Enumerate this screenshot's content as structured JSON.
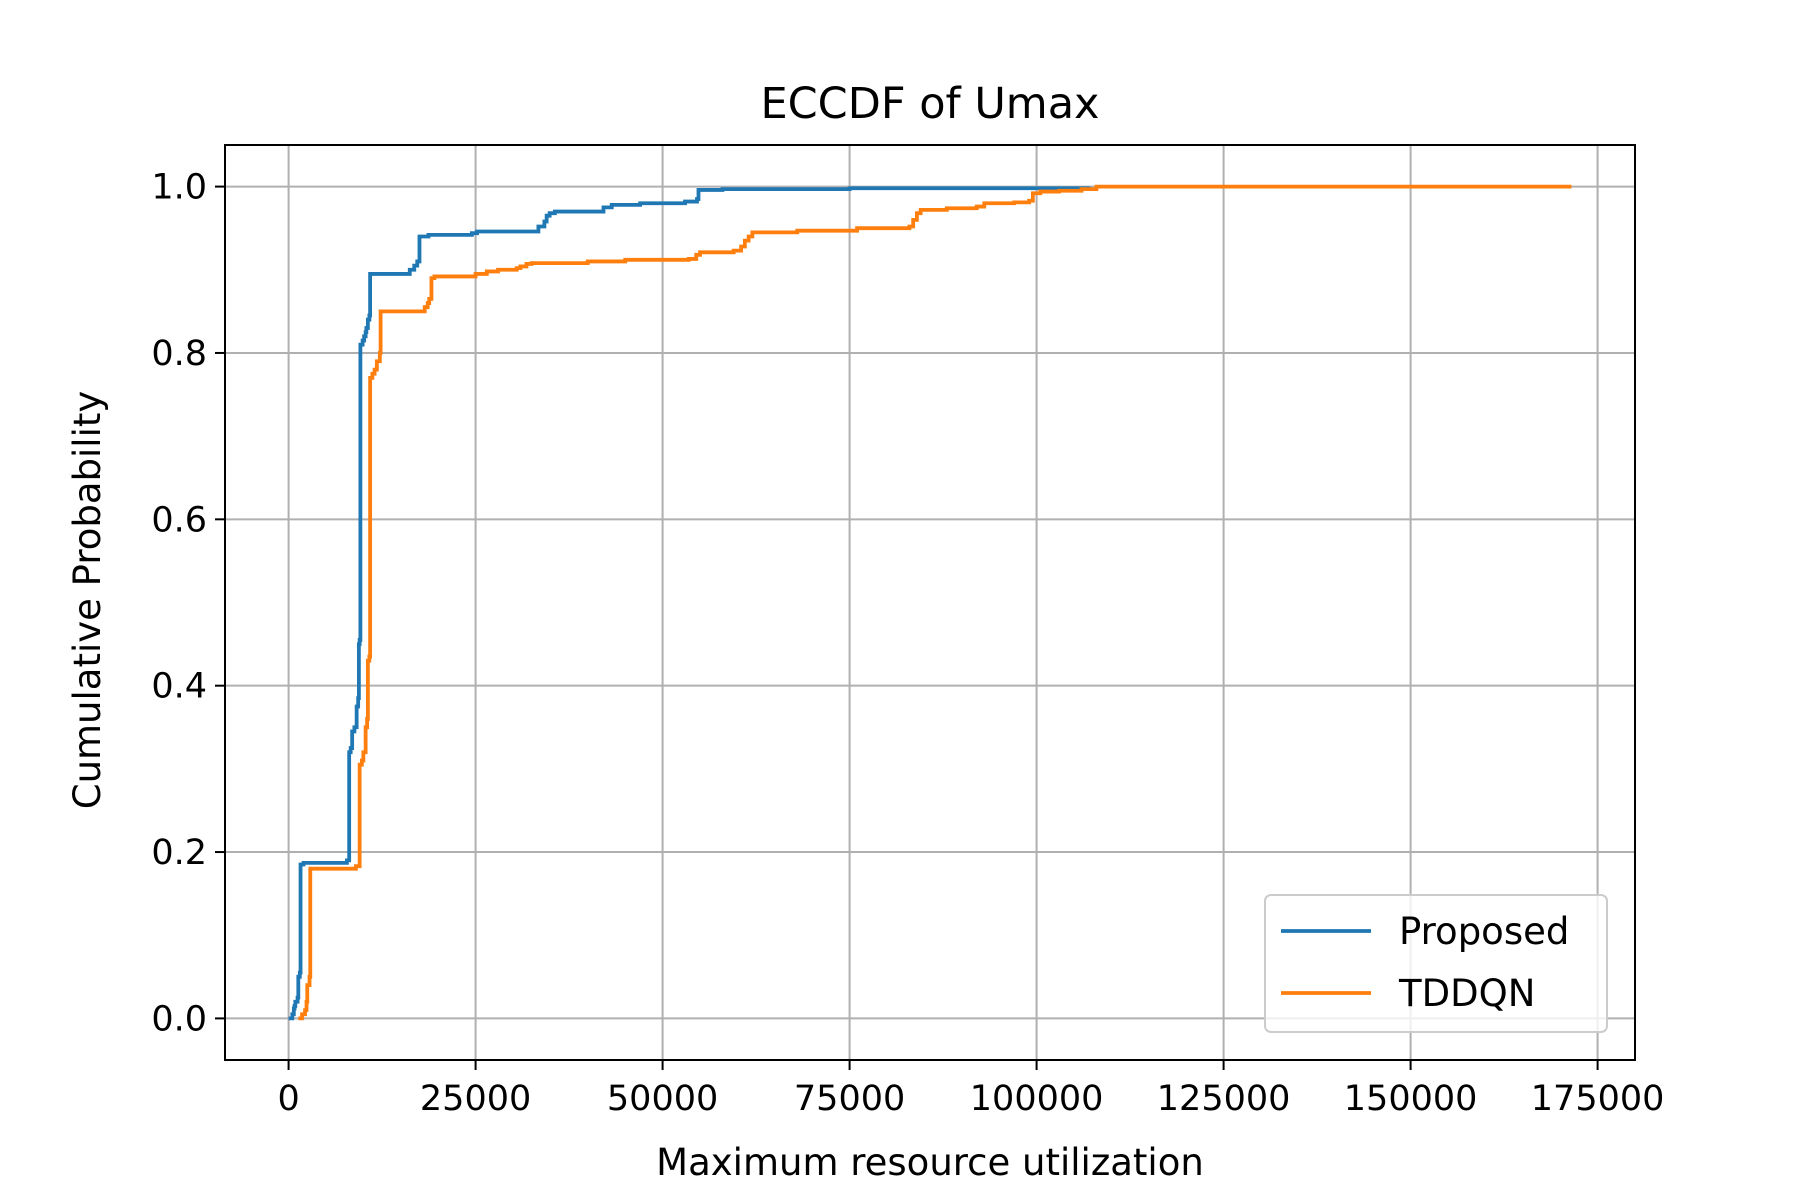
{
  "chart_data": {
    "type": "line",
    "title": "ECCDF of Umax",
    "xlabel": "Maximum resource utilization",
    "ylabel": "Cumulative Probability",
    "xlim": [
      -8500,
      180000
    ],
    "ylim": [
      -0.05,
      1.05
    ],
    "xticks": [
      0,
      25000,
      50000,
      75000,
      100000,
      125000,
      150000,
      175000
    ],
    "xtick_labels": [
      "0",
      "25000",
      "50000",
      "75000",
      "100000",
      "125000",
      "150000",
      "175000"
    ],
    "yticks": [
      0.0,
      0.2,
      0.4,
      0.6,
      0.8,
      1.0
    ],
    "ytick_labels": [
      "0.0",
      "0.2",
      "0.4",
      "0.6",
      "0.8",
      "1.0"
    ],
    "grid": true,
    "legend_position": "bottom-right",
    "series": [
      {
        "name": "Proposed",
        "color": "#1f77b4",
        "points": [
          [
            0,
            0.0
          ],
          [
            500,
            0.005
          ],
          [
            700,
            0.012
          ],
          [
            800,
            0.015
          ],
          [
            900,
            0.02
          ],
          [
            1200,
            0.025
          ],
          [
            1300,
            0.05
          ],
          [
            1500,
            0.055
          ],
          [
            1600,
            0.185
          ],
          [
            2000,
            0.187
          ],
          [
            7800,
            0.19
          ],
          [
            8100,
            0.32
          ],
          [
            8300,
            0.325
          ],
          [
            8500,
            0.345
          ],
          [
            8800,
            0.35
          ],
          [
            9100,
            0.375
          ],
          [
            9300,
            0.385
          ],
          [
            9400,
            0.45
          ],
          [
            9500,
            0.455
          ],
          [
            9600,
            0.81
          ],
          [
            9900,
            0.815
          ],
          [
            10100,
            0.82
          ],
          [
            10300,
            0.825
          ],
          [
            10400,
            0.83
          ],
          [
            10600,
            0.84
          ],
          [
            10800,
            0.845
          ],
          [
            10900,
            0.895
          ],
          [
            15000,
            0.895
          ],
          [
            16200,
            0.9
          ],
          [
            16800,
            0.905
          ],
          [
            17200,
            0.91
          ],
          [
            17500,
            0.94
          ],
          [
            18300,
            0.94
          ],
          [
            18700,
            0.942
          ],
          [
            23500,
            0.942
          ],
          [
            24500,
            0.944
          ],
          [
            25200,
            0.946
          ],
          [
            33000,
            0.946
          ],
          [
            33400,
            0.952
          ],
          [
            34200,
            0.958
          ],
          [
            34500,
            0.965
          ],
          [
            34900,
            0.968
          ],
          [
            35600,
            0.97
          ],
          [
            41300,
            0.97
          ],
          [
            42100,
            0.975
          ],
          [
            43200,
            0.978
          ],
          [
            47000,
            0.98
          ],
          [
            53000,
            0.982
          ],
          [
            54600,
            0.985
          ],
          [
            54800,
            0.996
          ],
          [
            58000,
            0.997
          ],
          [
            75000,
            0.998
          ],
          [
            107000,
            1.0
          ]
        ]
      },
      {
        "name": "TDDQN",
        "color": "#ff7f0e",
        "points": [
          [
            1300,
            0.0
          ],
          [
            1800,
            0.005
          ],
          [
            2200,
            0.01
          ],
          [
            2400,
            0.02
          ],
          [
            2500,
            0.04
          ],
          [
            2800,
            0.05
          ],
          [
            2900,
            0.18
          ],
          [
            8000,
            0.18
          ],
          [
            9000,
            0.183
          ],
          [
            9400,
            0.183
          ],
          [
            9500,
            0.305
          ],
          [
            9800,
            0.31
          ],
          [
            10000,
            0.32
          ],
          [
            10300,
            0.35
          ],
          [
            10500,
            0.36
          ],
          [
            10600,
            0.43
          ],
          [
            10800,
            0.435
          ],
          [
            10900,
            0.77
          ],
          [
            11200,
            0.775
          ],
          [
            11500,
            0.78
          ],
          [
            11800,
            0.79
          ],
          [
            12200,
            0.8
          ],
          [
            12300,
            0.85
          ],
          [
            17000,
            0.85
          ],
          [
            18200,
            0.855
          ],
          [
            18600,
            0.86
          ],
          [
            18800,
            0.865
          ],
          [
            19100,
            0.89
          ],
          [
            19500,
            0.892
          ],
          [
            25000,
            0.895
          ],
          [
            26500,
            0.898
          ],
          [
            28000,
            0.9
          ],
          [
            30500,
            0.902
          ],
          [
            31000,
            0.904
          ],
          [
            31800,
            0.907
          ],
          [
            32500,
            0.908
          ],
          [
            40000,
            0.91
          ],
          [
            45000,
            0.912
          ],
          [
            53500,
            0.913
          ],
          [
            54500,
            0.918
          ],
          [
            55000,
            0.921
          ],
          [
            59500,
            0.923
          ],
          [
            60500,
            0.928
          ],
          [
            61000,
            0.935
          ],
          [
            61500,
            0.94
          ],
          [
            62000,
            0.945
          ],
          [
            68000,
            0.947
          ],
          [
            76000,
            0.95
          ],
          [
            83000,
            0.952
          ],
          [
            83500,
            0.96
          ],
          [
            84000,
            0.968
          ],
          [
            84500,
            0.972
          ],
          [
            88000,
            0.974
          ],
          [
            92000,
            0.976
          ],
          [
            93000,
            0.98
          ],
          [
            97000,
            0.981
          ],
          [
            99000,
            0.983
          ],
          [
            99500,
            0.992
          ],
          [
            100500,
            0.994
          ],
          [
            103000,
            0.995
          ],
          [
            106000,
            0.997
          ],
          [
            108000,
            1.0
          ],
          [
            171500,
            1.0
          ]
        ]
      }
    ]
  }
}
